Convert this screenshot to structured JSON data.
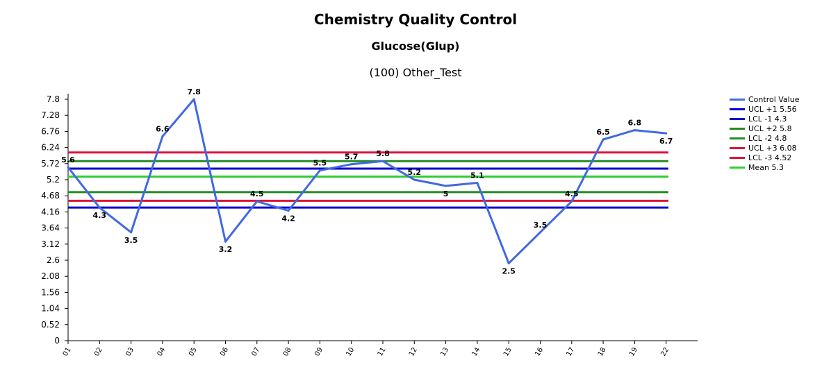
{
  "header": {
    "title": "Chemistry Quality Control",
    "subtitle": "Glucose(Glup)",
    "subtitle2": "(100) Other_Test"
  },
  "chart_data": {
    "type": "line",
    "title": "Chemistry Quality Control",
    "subtitle": "Glucose(Glup)",
    "xlabel": "",
    "ylabel": "",
    "categories": [
      "01",
      "02",
      "03",
      "04",
      "05",
      "06",
      "07",
      "08",
      "09",
      "10",
      "11",
      "12",
      "13",
      "14",
      "15",
      "16",
      "17",
      "18",
      "19",
      "22"
    ],
    "y_ticks": [
      "0",
      "0.52",
      "1.04",
      "1.56",
      "2.08",
      "2.6",
      "3.12",
      "3.64",
      "4.16",
      "4.68",
      "5.2",
      "5.72",
      "6.24",
      "6.76",
      "7.28",
      "7.8"
    ],
    "ylim": [
      0,
      7.8
    ],
    "grid": false,
    "legend_position": "right",
    "series": [
      {
        "name": "Control Value",
        "color": "#4169e1",
        "values": [
          5.6,
          4.3,
          3.5,
          6.6,
          7.8,
          3.2,
          4.5,
          4.2,
          5.5,
          5.7,
          5.8,
          5.2,
          5,
          5.1,
          2.5,
          3.5,
          4.5,
          6.5,
          6.8,
          6.7
        ],
        "labels": [
          "5.6",
          "4.3",
          "3.5",
          "6.6",
          "7.8",
          "3.2",
          "4.5",
          "4.2",
          "5.5",
          "5.7",
          "5.8",
          "5.2",
          "5",
          "5.1",
          "2.5",
          "3.5",
          "4.5",
          "6.5",
          "6.8",
          "6.7"
        ]
      }
    ],
    "reference_lines": [
      {
        "name": "UCL +1 5.56",
        "value": 5.56,
        "color": "#0000cd"
      },
      {
        "name": "LCL -1 4.3",
        "value": 4.3,
        "color": "#0000cd"
      },
      {
        "name": "UCL +2 5.8",
        "value": 5.8,
        "color": "#228b22"
      },
      {
        "name": "LCL -2 4.8",
        "value": 4.8,
        "color": "#228b22"
      },
      {
        "name": "UCL +3 6.08",
        "value": 6.08,
        "color": "#dc143c"
      },
      {
        "name": "LCL -3 4.52",
        "value": 4.52,
        "color": "#dc143c"
      },
      {
        "name": "Mean 5.3",
        "value": 5.3,
        "color": "#32cd32"
      }
    ]
  }
}
